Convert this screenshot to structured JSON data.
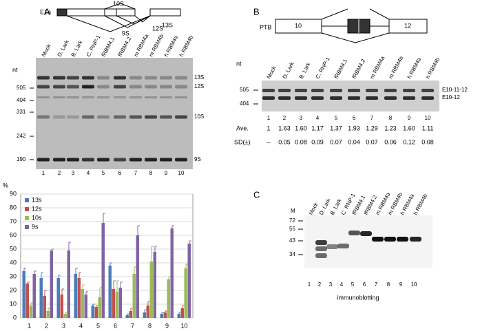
{
  "panel_a": {
    "label": "A",
    "diagram": {
      "gene": "E1a",
      "isoforms": [
        "10S",
        "13S",
        "12S",
        "9S"
      ]
    },
    "gel": {
      "unit": "nt",
      "markers": [
        "505",
        "404",
        "331",
        "242",
        "190"
      ],
      "lanes": [
        "Mock",
        "D. Lark",
        "B. Lark",
        "C. RNP-1",
        "fRBM4.1",
        "fRBM4.2",
        "m RBM4a",
        "m RBM4b",
        "h RBM4a",
        "h RBM4b"
      ],
      "lane_numbers": [
        "1",
        "2",
        "3",
        "4",
        "5",
        "6",
        "7",
        "8",
        "9",
        "10"
      ],
      "bands": [
        "13S",
        "12S",
        "10S",
        "9S"
      ]
    }
  },
  "panel_b": {
    "label": "B",
    "diagram": {
      "gene": "PTB",
      "exons": [
        "10",
        "12"
      ]
    },
    "gel": {
      "unit": "nt",
      "markers": [
        "505",
        "404"
      ],
      "lanes": [
        "Mock",
        "D. Lark",
        "B. Lark",
        "C. RNP-1",
        "fRBM4.1",
        "fRBM4.2",
        "m RBM4a",
        "m RBM4b",
        "h RBM4a",
        "h RBM4b"
      ],
      "lane_numbers": [
        "1",
        "2",
        "3",
        "4",
        "5",
        "6",
        "7",
        "8",
        "9",
        "10"
      ],
      "bands": [
        "E10-11-12",
        "E10-12"
      ]
    },
    "stats": {
      "ave_label": "Ave.",
      "ave": [
        "1",
        "1.63",
        "1.60",
        "1.17",
        "1.37",
        "1.93",
        "1.29",
        "1.23",
        "1.60",
        "1.11"
      ],
      "sd_label": "SD(±)",
      "sd": [
        "–",
        "0.05",
        "0.08",
        "0.09",
        "0.07",
        "0.04",
        "0.07",
        "0.06",
        "0.12",
        "0.08"
      ]
    }
  },
  "panel_c": {
    "label": "C",
    "marker_label": "M",
    "markers": [
      "72",
      "55",
      "43",
      "34"
    ],
    "lanes": [
      "Mock",
      "D. Lark",
      "B. Lark",
      "C. RNP-1",
      "fRBM4.1",
      "fRBM4.2",
      "m RBM4a",
      "m RBM4b",
      "h RBM4a",
      "h RBM4b"
    ],
    "lane_numbers": [
      "1",
      "2",
      "3",
      "4",
      "5",
      "6",
      "7",
      "8",
      "9",
      "10"
    ],
    "caption": "immunoblotting"
  },
  "chart_data": {
    "type": "bar",
    "ylabel": "%",
    "categories": [
      "1",
      "2",
      "3",
      "4",
      "5",
      "6",
      "7",
      "8",
      "9",
      "10"
    ],
    "series": [
      {
        "name": "13s",
        "color": "#4a7ebb",
        "values": [
          34,
          29,
          29,
          32,
          9,
          38,
          2,
          4,
          3,
          3
        ],
        "errors": [
          2,
          4,
          2,
          4,
          1,
          2,
          1,
          2,
          1,
          1
        ]
      },
      {
        "name": "12s",
        "color": "#c0504d",
        "values": [
          25,
          16,
          17,
          29,
          8,
          21,
          5,
          9,
          4,
          7
        ],
        "errors": [
          1,
          4,
          4,
          4,
          1,
          6,
          2,
          3,
          1,
          2
        ]
      },
      {
        "name": "10s",
        "color": "#9bbb59",
        "values": [
          9,
          5,
          3,
          21,
          15,
          19,
          32,
          41,
          28,
          36
        ],
        "errors": [
          2,
          2,
          1,
          3,
          7,
          8,
          5,
          11,
          2,
          3
        ]
      },
      {
        "name": "9s",
        "color": "#8064a2",
        "values": [
          32,
          49,
          49,
          17,
          69,
          22,
          60,
          48,
          65,
          54
        ],
        "errors": [
          2,
          1,
          6,
          2,
          7,
          4,
          7,
          4,
          2,
          2
        ]
      }
    ],
    "ylim": [
      0,
      90
    ],
    "yticks": [
      0,
      10,
      20,
      30,
      40,
      50,
      60,
      70,
      80,
      90
    ],
    "grid": true,
    "legend": "upper left"
  }
}
